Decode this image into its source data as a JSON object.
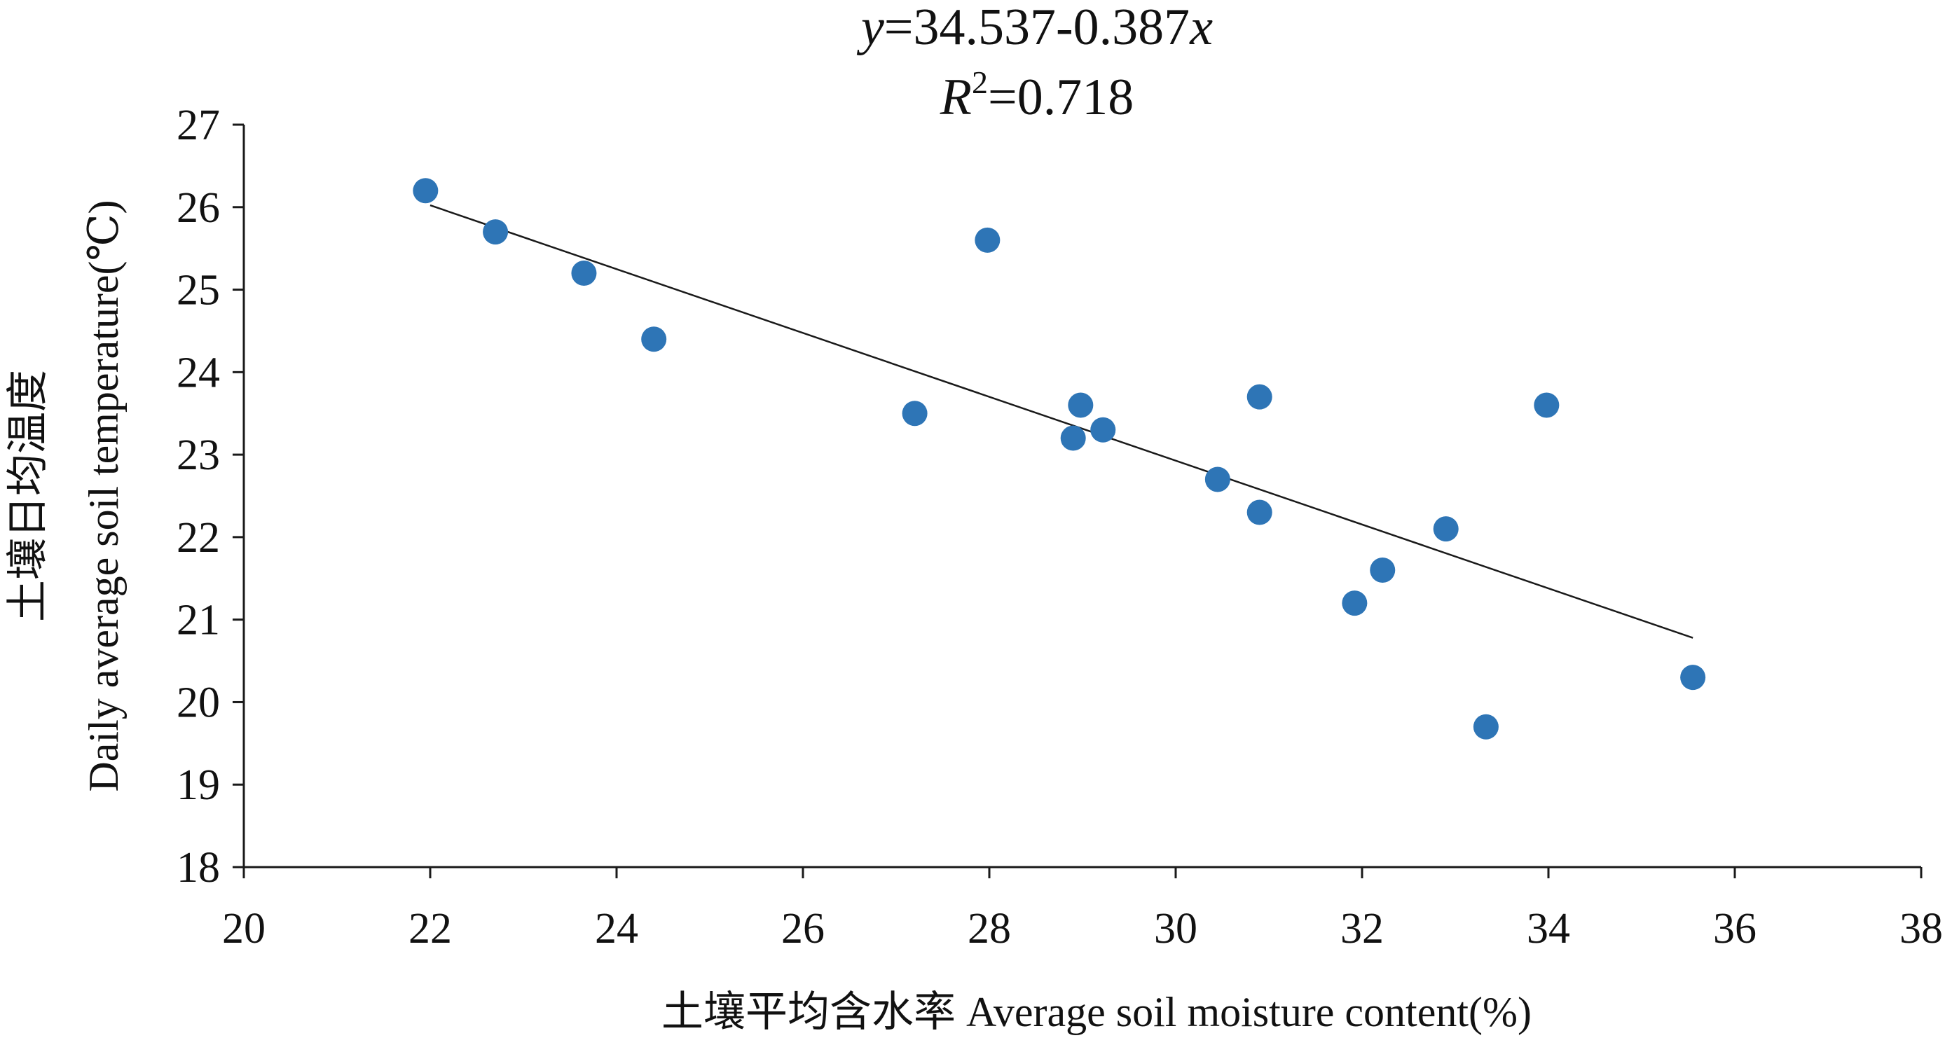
{
  "equation": {
    "y_var": "y",
    "rhs_text": "=34.537-0.387",
    "x_var": "x",
    "r_symbol": "R",
    "r_exponent": "2",
    "r_value_text": "=0.718"
  },
  "chart_data": {
    "type": "scatter",
    "title": "",
    "xlabel": "土壤平均含水率 Average soil moisture content(%)",
    "ylabel_cn": "土壤日均温度",
    "ylabel_en": "Daily average soil temperature(℃)",
    "xlim": [
      20,
      38
    ],
    "ylim": [
      18,
      27
    ],
    "x_ticks": [
      20,
      22,
      24,
      26,
      28,
      30,
      32,
      34,
      36,
      38
    ],
    "y_ticks": [
      18,
      19,
      20,
      21,
      22,
      23,
      24,
      25,
      26,
      27
    ],
    "grid": false,
    "legend": "none",
    "marker_color": "#2e75b6",
    "trendline_color": "#1a1a1a",
    "series": [
      {
        "points": [
          {
            "x": 21.95,
            "y": 26.2
          },
          {
            "x": 22.7,
            "y": 25.7
          },
          {
            "x": 23.65,
            "y": 25.2
          },
          {
            "x": 24.4,
            "y": 24.4
          },
          {
            "x": 27.2,
            "y": 23.5
          },
          {
            "x": 27.98,
            "y": 25.6
          },
          {
            "x": 28.9,
            "y": 23.2
          },
          {
            "x": 28.98,
            "y": 23.6
          },
          {
            "x": 29.22,
            "y": 23.3
          },
          {
            "x": 30.45,
            "y": 22.7
          },
          {
            "x": 30.9,
            "y": 23.7
          },
          {
            "x": 30.9,
            "y": 22.3
          },
          {
            "x": 31.92,
            "y": 21.2
          },
          {
            "x": 32.22,
            "y": 21.6
          },
          {
            "x": 32.9,
            "y": 22.1
          },
          {
            "x": 33.33,
            "y": 19.7
          },
          {
            "x": 33.98,
            "y": 23.6
          },
          {
            "x": 35.55,
            "y": 20.3
          }
        ]
      }
    ],
    "trendline": {
      "intercept": 34.537,
      "slope": -0.387,
      "x_range": [
        22.0,
        35.55
      ]
    }
  }
}
